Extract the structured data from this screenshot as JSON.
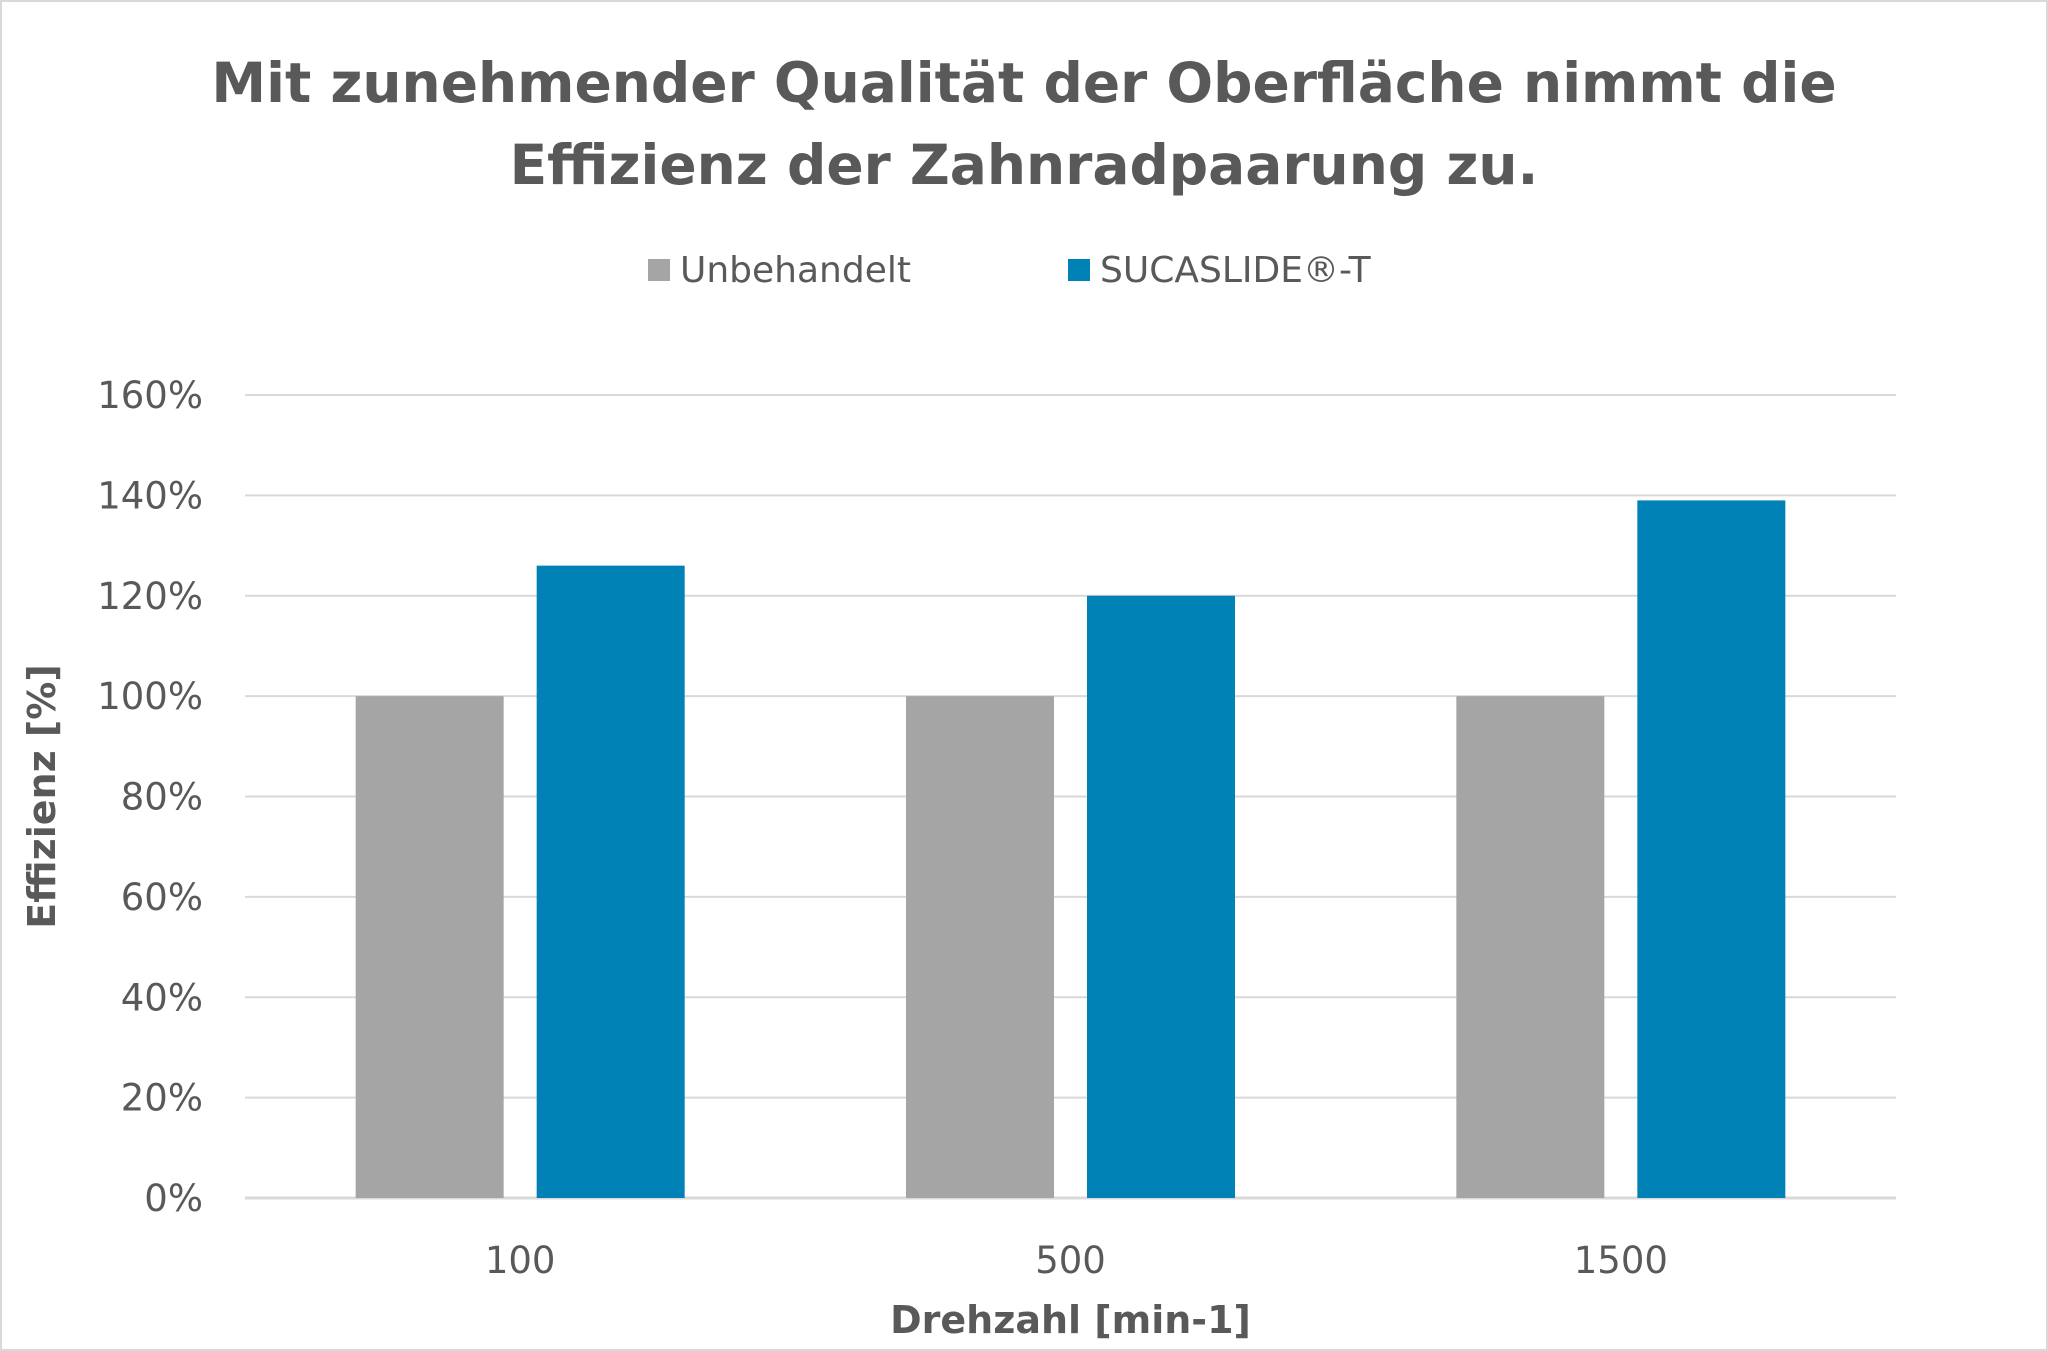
{
  "chart_data": {
    "type": "bar",
    "title_lines": [
      "Mit zunehmender Qualität der Oberfläche nimmt die",
      "Effizienz der Zahnradpaarung zu."
    ],
    "xlabel": "Drehzahl [min-1]",
    "ylabel": "Effizienz [%]",
    "categories": [
      "100",
      "500",
      "1500"
    ],
    "series": [
      {
        "name": "Unbehandelt",
        "color": "#a5a5a5",
        "values": [
          100,
          100,
          100
        ]
      },
      {
        "name": "SUCASLIDE®-T",
        "color": "#0082b6",
        "values": [
          126,
          120,
          139
        ]
      }
    ],
    "ylim": [
      0,
      160
    ],
    "ytick_step": 20,
    "ytick_labels": [
      "0%",
      "20%",
      "40%",
      "60%",
      "80%",
      "100%",
      "120%",
      "140%",
      "160%"
    ],
    "grid": true,
    "legend_position": "top-center"
  }
}
